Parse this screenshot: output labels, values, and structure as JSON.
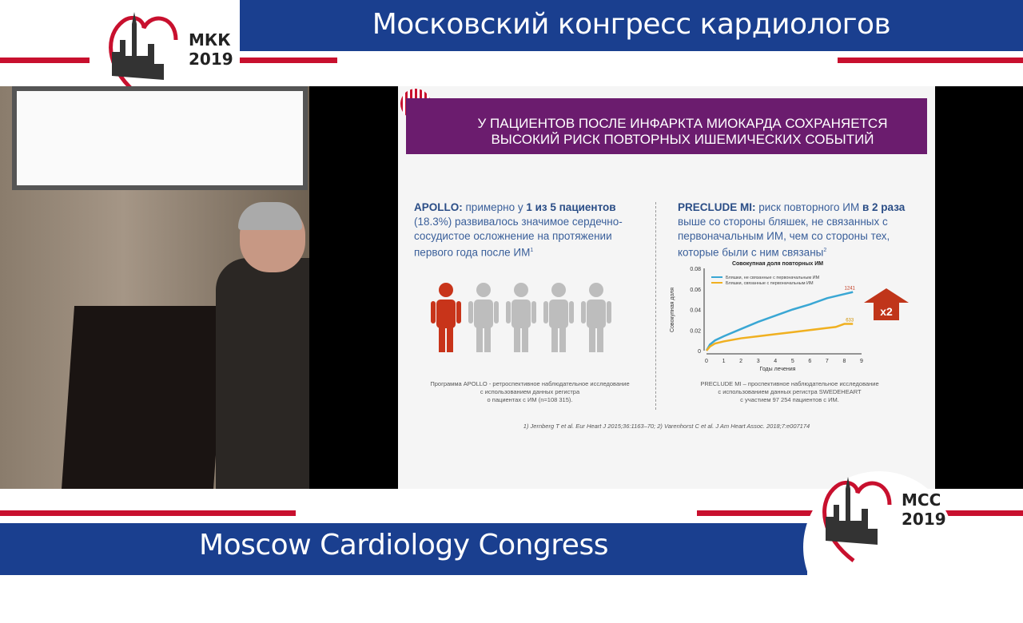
{
  "top_banner": {
    "title": "Московский конгресс кардиологов",
    "logo_text": [
      "МКК",
      "2019"
    ]
  },
  "bottom_banner": {
    "title": "Moscow Cardiology Congress",
    "logo_text": [
      "MCC",
      "2019"
    ]
  },
  "colors": {
    "banner_blue": "#1a3f8f",
    "accent_red": "#c8102e",
    "slide_header_purple": "#6b1c6e",
    "series_blue": "#3aa7d4",
    "series_orange": "#f0b020"
  },
  "slide": {
    "header": [
      "У ПАЦИЕНТОВ ПОСЛЕ ИНФАРКТА МИОКАРДА СОХРАНЯЕТСЯ",
      "ВЫСОКИЙ РИСК ПОВТОРНЫХ ИШЕМИЧЕСКИХ СОБЫТИЙ"
    ],
    "apollo": {
      "lead": "APOLLO:",
      "t1": " примерно у ",
      "bold1": "1 из 5 пациентов",
      "t2": " (18.3%) развивалось значимое сердечно-сосудистое осложнение на протяжении первого года после ИМ",
      "sup": "1",
      "people_total": 5,
      "people_highlighted": 1,
      "note": [
        "Программа APOLLO - ретроспективное наблюдательное исследование",
        "с использованием данных регистра",
        "о пациентах с ИМ (n=108 315)."
      ]
    },
    "preclude": {
      "lead": "PRECLUDE MI:",
      "t1": " риск повторного ИМ ",
      "bold1": "в 2 раза",
      "t2": " выше со стороны бляшек, не связанных с первоначальным ИМ, чем со стороны тех, которые были с ним связаны",
      "sup": "2",
      "arrow_label": "x2",
      "note": [
        "PRECLUDE MI – проспективное наблюдательное исследование",
        "с использованием данных регистра SWEDEHEART",
        "с участием 97 254 пациентов с ИМ."
      ]
    },
    "references": "1) Jernberg T et al. Eur Heart J 2015;36:1163–70; 2) Varenhorst C et al. J Am Heart Assoc. 2018;7:e007174"
  },
  "chart_data": {
    "type": "line",
    "title": "Совокупная доля повторных ИМ",
    "xlabel": "Годы лечения",
    "ylabel": "Совокупная доля",
    "xlim": [
      0,
      9
    ],
    "ylim": [
      0,
      0.08
    ],
    "xticks": [
      "0",
      "1",
      "2",
      "3",
      "4",
      "5",
      "6",
      "7",
      "8",
      "9"
    ],
    "yticks": [
      "0",
      "0.02",
      "0.04",
      "0.06",
      "0.08"
    ],
    "legend_position": "top-left",
    "series": [
      {
        "name": "Бляшки, не связанные с первоначальным ИМ",
        "end_label": "1241",
        "color": "#3aa7d4",
        "x": [
          0,
          0.2,
          0.5,
          1,
          2,
          3,
          4,
          5,
          6,
          7,
          8,
          8.5
        ],
        "y": [
          0,
          0.006,
          0.01,
          0.014,
          0.021,
          0.028,
          0.034,
          0.04,
          0.045,
          0.051,
          0.055,
          0.057
        ]
      },
      {
        "name": "Бляшки, связанные с первоначальным ИМ",
        "end_label": "633",
        "color": "#f0b020",
        "x": [
          0,
          0.2,
          0.5,
          1,
          2,
          3,
          4,
          5,
          6,
          7,
          7.5,
          8,
          8.5
        ],
        "y": [
          0,
          0.004,
          0.007,
          0.009,
          0.012,
          0.014,
          0.016,
          0.018,
          0.02,
          0.022,
          0.023,
          0.026,
          0.026
        ]
      }
    ]
  }
}
